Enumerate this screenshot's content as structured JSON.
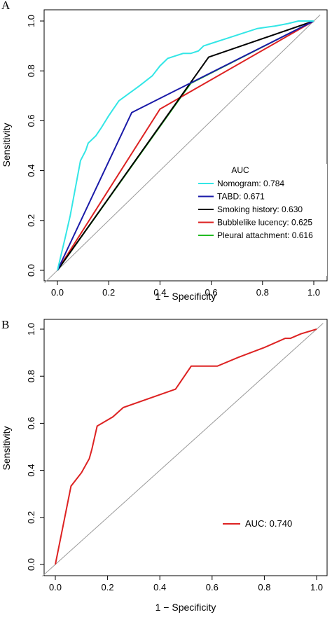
{
  "chart_data": [
    {
      "type": "line",
      "panel_label": "A",
      "xlabel": "1 − Specificity",
      "ylabel": "Sensitivity",
      "xlim": [
        0,
        1
      ],
      "ylim": [
        0,
        1
      ],
      "xticks": [
        "0.0",
        "0.2",
        "0.4",
        "0.6",
        "0.8",
        "1.0"
      ],
      "yticks": [
        "0.0",
        "0.2",
        "0.4",
        "0.6",
        "0.8",
        "1.0"
      ],
      "legend_title": "AUC",
      "legend_position": "bottom-right",
      "reference_line": true,
      "series": [
        {
          "name": "Nomogram: 0.784",
          "color": "#33e6e6",
          "points": [
            [
              0,
              0
            ],
            [
              0.03,
              0.13
            ],
            [
              0.05,
              0.22
            ],
            [
              0.07,
              0.33
            ],
            [
              0.09,
              0.44
            ],
            [
              0.11,
              0.48
            ],
            [
              0.12,
              0.51
            ],
            [
              0.15,
              0.54
            ],
            [
              0.17,
              0.57
            ],
            [
              0.2,
              0.62
            ],
            [
              0.22,
              0.65
            ],
            [
              0.24,
              0.68
            ],
            [
              0.28,
              0.71
            ],
            [
              0.32,
              0.74
            ],
            [
              0.37,
              0.78
            ],
            [
              0.4,
              0.82
            ],
            [
              0.43,
              0.85
            ],
            [
              0.46,
              0.86
            ],
            [
              0.49,
              0.87
            ],
            [
              0.52,
              0.87
            ],
            [
              0.55,
              0.88
            ],
            [
              0.57,
              0.9
            ],
            [
              0.6,
              0.91
            ],
            [
              0.66,
              0.93
            ],
            [
              0.72,
              0.95
            ],
            [
              0.78,
              0.97
            ],
            [
              0.85,
              0.98
            ],
            [
              0.9,
              0.99
            ],
            [
              0.94,
              1.0
            ],
            [
              1.0,
              1.0
            ]
          ]
        },
        {
          "name": "TABD: 0.671",
          "color": "#1a1aa8",
          "points": [
            [
              0,
              0
            ],
            [
              0.29,
              0.633
            ],
            [
              1,
              1
            ]
          ]
        },
        {
          "name": "Smoking history: 0.630",
          "color": "#000000",
          "points": [
            [
              0,
              0
            ],
            [
              0.59,
              0.855
            ],
            [
              1,
              1
            ]
          ]
        },
        {
          "name": "Bubblelike lucency: 0.625",
          "color": "#dd2222",
          "points": [
            [
              0,
              0
            ],
            [
              0.4,
              0.647
            ],
            [
              1,
              1
            ]
          ]
        },
        {
          "name": "Pleural attachment: 0.616",
          "color": "#22bb22",
          "points": [
            [
              0,
              0
            ],
            [
              0.52,
              0.75
            ],
            [
              1,
              1
            ]
          ]
        }
      ]
    },
    {
      "type": "line",
      "panel_label": "B",
      "xlabel": "1 − Specificity",
      "ylabel": "Sensitivity",
      "xlim": [
        0,
        1
      ],
      "ylim": [
        0,
        1
      ],
      "xticks": [
        "0.0",
        "0.2",
        "0.4",
        "0.6",
        "0.8",
        "1.0"
      ],
      "yticks": [
        "0.0",
        "0.2",
        "0.4",
        "0.6",
        "0.8",
        "1.0"
      ],
      "legend_position": "bottom-right",
      "reference_line": true,
      "series": [
        {
          "name": "AUC: 0.740",
          "color": "#dd2222",
          "points": [
            [
              0,
              0
            ],
            [
              0.06,
              0.333
            ],
            [
              0.1,
              0.39
            ],
            [
              0.13,
              0.45
            ],
            [
              0.14,
              0.49
            ],
            [
              0.16,
              0.588
            ],
            [
              0.22,
              0.627
            ],
            [
              0.26,
              0.667
            ],
            [
              0.46,
              0.745
            ],
            [
              0.52,
              0.843
            ],
            [
              0.62,
              0.843
            ],
            [
              0.7,
              0.88
            ],
            [
              0.8,
              0.922
            ],
            [
              0.88,
              0.961
            ],
            [
              0.9,
              0.961
            ],
            [
              0.94,
              0.98
            ],
            [
              1,
              1
            ]
          ]
        }
      ]
    }
  ]
}
